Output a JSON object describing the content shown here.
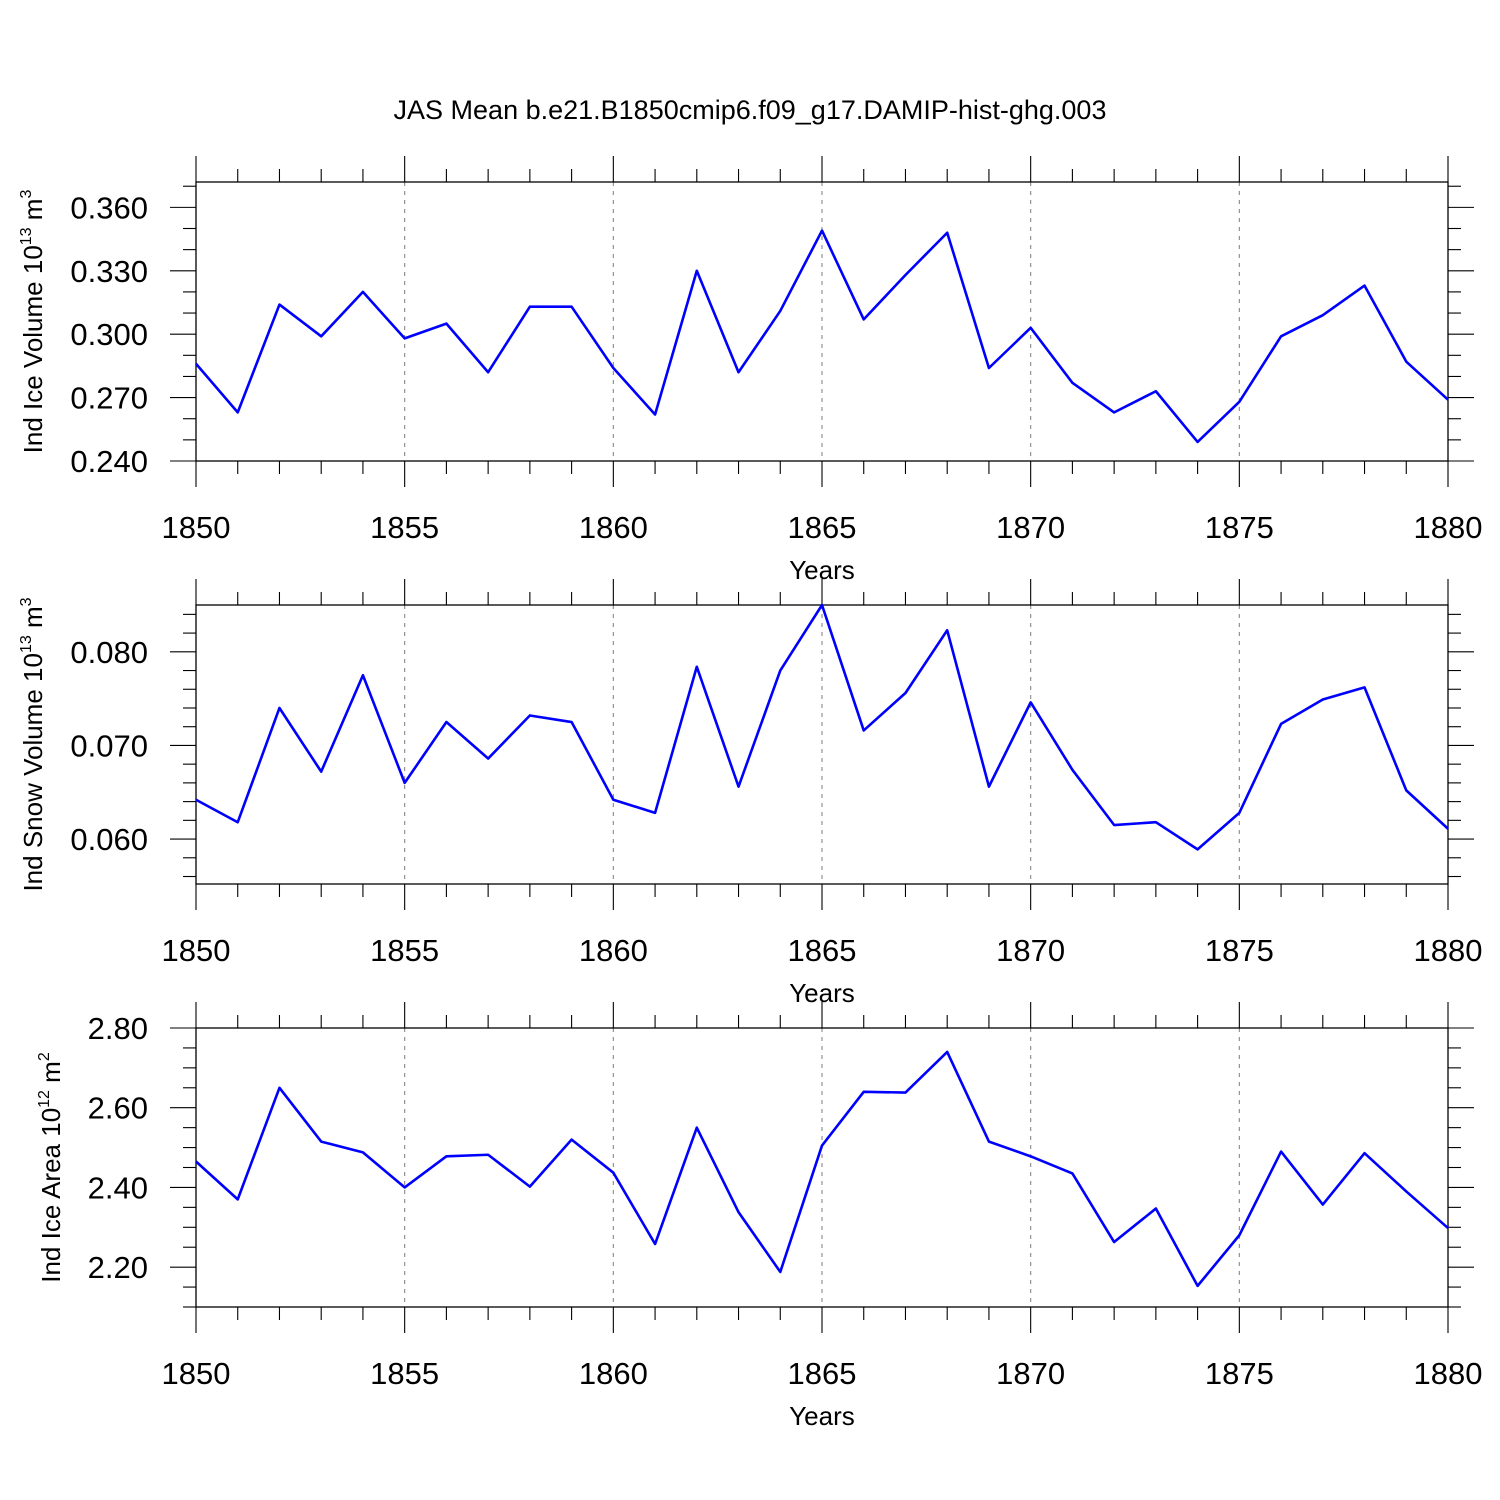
{
  "title": "JAS Mean b.e21.B1850cmip6.f09_g17.DAMIP-hist-ghg.003",
  "colors": {
    "series": "#0000ff",
    "frame": "#000000",
    "grid": "#888888"
  },
  "chart_data": [
    {
      "type": "line",
      "title": "JAS Mean b.e21.B1850cmip6.f09_g17.DAMIP-hist-ghg.003",
      "xlabel": "Years",
      "ylabel": {
        "main": "Ind Ice Volume 10",
        "sup": "13",
        "tail": " m",
        "unit_sup": "3"
      },
      "xlim": [
        1850,
        1880
      ],
      "ylim": [
        0.24,
        0.372
      ],
      "xticks": [
        1850,
        1855,
        1860,
        1865,
        1870,
        1875,
        1880
      ],
      "xtick_labels": [
        "1850",
        "1855",
        "1860",
        "1865",
        "1870",
        "1875",
        "1880"
      ],
      "yticks": [
        0.24,
        0.27,
        0.3,
        0.33,
        0.36
      ],
      "ytick_labels": [
        "0.240",
        "0.270",
        "0.300",
        "0.330",
        "0.360"
      ],
      "y_minor_step": 0.01,
      "grid_x": true,
      "x": [
        1850,
        1851,
        1852,
        1853,
        1854,
        1855,
        1856,
        1857,
        1858,
        1859,
        1860,
        1861,
        1862,
        1863,
        1864,
        1865,
        1866,
        1867,
        1868,
        1869,
        1870,
        1871,
        1872,
        1873,
        1874,
        1875,
        1876,
        1877,
        1878,
        1879,
        1880
      ],
      "series": [
        {
          "name": "Ind Ice Volume",
          "values": [
            0.286,
            0.263,
            0.314,
            0.299,
            0.32,
            0.298,
            0.305,
            0.282,
            0.313,
            0.313,
            0.284,
            0.262,
            0.33,
            0.282,
            0.311,
            0.349,
            0.307,
            0.328,
            0.348,
            0.284,
            0.303,
            0.277,
            0.263,
            0.273,
            0.249,
            0.268,
            0.299,
            0.309,
            0.323,
            0.287,
            0.269
          ]
        }
      ]
    },
    {
      "type": "line",
      "xlabel": "Years",
      "ylabel": {
        "main": "Ind Snow Volume 10",
        "sup": "13",
        "tail": " m",
        "unit_sup": "3"
      },
      "xlim": [
        1850,
        1880
      ],
      "ylim": [
        0.0552,
        0.085
      ],
      "xticks": [
        1850,
        1855,
        1860,
        1865,
        1870,
        1875,
        1880
      ],
      "xtick_labels": [
        "1850",
        "1855",
        "1860",
        "1865",
        "1870",
        "1875",
        "1880"
      ],
      "yticks": [
        0.06,
        0.07,
        0.08
      ],
      "ytick_labels": [
        "0.060",
        "0.070",
        "0.080"
      ],
      "y_minor_step": 0.002,
      "grid_x": true,
      "x": [
        1850,
        1851,
        1852,
        1853,
        1854,
        1855,
        1856,
        1857,
        1858,
        1859,
        1860,
        1861,
        1862,
        1863,
        1864,
        1865,
        1866,
        1867,
        1868,
        1869,
        1870,
        1871,
        1872,
        1873,
        1874,
        1875,
        1876,
        1877,
        1878,
        1879,
        1880
      ],
      "series": [
        {
          "name": "Ind Snow Volume",
          "values": [
            0.0642,
            0.0618,
            0.074,
            0.0672,
            0.0775,
            0.066,
            0.0725,
            0.0686,
            0.0732,
            0.0725,
            0.0642,
            0.0628,
            0.0784,
            0.0656,
            0.078,
            0.085,
            0.0716,
            0.0756,
            0.0823,
            0.0656,
            0.0746,
            0.0674,
            0.0615,
            0.0618,
            0.0589,
            0.0628,
            0.0723,
            0.0749,
            0.0762,
            0.0652,
            0.0611
          ]
        }
      ]
    },
    {
      "type": "line",
      "xlabel": "Years",
      "ylabel": {
        "main": "Ind Ice Area 10",
        "sup": "12",
        "tail": " m",
        "unit_sup": "2"
      },
      "xlim": [
        1850,
        1880
      ],
      "ylim": [
        2.1,
        2.8
      ],
      "xticks": [
        1850,
        1855,
        1860,
        1865,
        1870,
        1875,
        1880
      ],
      "xtick_labels": [
        "1850",
        "1855",
        "1860",
        "1865",
        "1870",
        "1875",
        "1880"
      ],
      "yticks": [
        2.2,
        2.4,
        2.6,
        2.8
      ],
      "ytick_labels": [
        "2.20",
        "2.40",
        "2.60",
        "2.80"
      ],
      "y_minor_step": 0.05,
      "grid_x": true,
      "x": [
        1850,
        1851,
        1852,
        1853,
        1854,
        1855,
        1856,
        1857,
        1858,
        1859,
        1860,
        1861,
        1862,
        1863,
        1864,
        1865,
        1866,
        1867,
        1868,
        1869,
        1870,
        1871,
        1872,
        1873,
        1874,
        1875,
        1876,
        1877,
        1878,
        1879,
        1880
      ],
      "series": [
        {
          "name": "Ind Ice Area",
          "values": [
            2.465,
            2.37,
            2.65,
            2.515,
            2.488,
            2.4,
            2.478,
            2.482,
            2.402,
            2.52,
            2.437,
            2.258,
            2.55,
            2.338,
            2.188,
            2.505,
            2.64,
            2.638,
            2.74,
            2.515,
            2.478,
            2.435,
            2.263,
            2.347,
            2.153,
            2.28,
            2.49,
            2.357,
            2.486,
            2.39,
            2.298
          ]
        }
      ]
    }
  ]
}
